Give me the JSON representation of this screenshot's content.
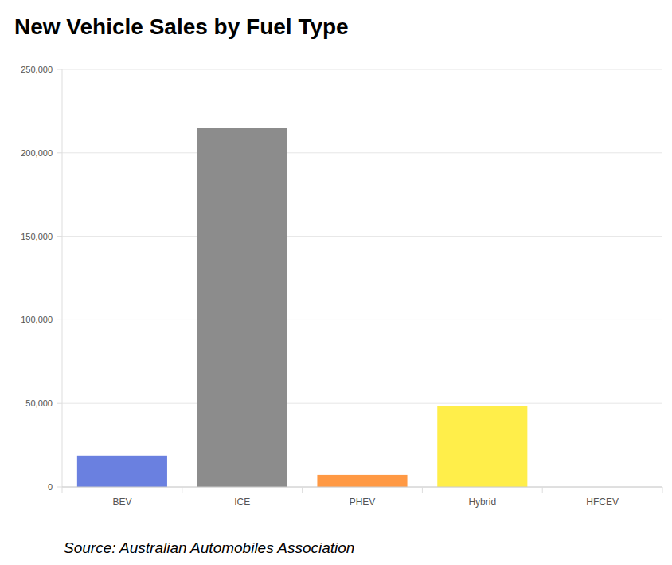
{
  "chart_data": {
    "type": "bar",
    "title": "New Vehicle Sales by Fuel Type",
    "source": "Source: Australian Automobiles Association",
    "categories": [
      "BEV",
      "ICE",
      "PHEV",
      "Hybrid",
      "HFCEV"
    ],
    "values": [
      18700,
      214700,
      7200,
      48200,
      0
    ],
    "colors": [
      "#6a80e0",
      "#8c8c8c",
      "#ff9944",
      "#ffee4a",
      "#4caf50"
    ],
    "ylim": [
      0,
      250000
    ],
    "yticks": [
      0,
      {
        "value": 50000,
        "label": "50,000"
      },
      {
        "value": 100000,
        "label": "100,000"
      },
      {
        "value": 150000,
        "label": "150,000"
      },
      {
        "value": 200000,
        "label": "200,000"
      },
      {
        "value": 250000,
        "label": "250,000"
      }
    ],
    "grid": true
  }
}
